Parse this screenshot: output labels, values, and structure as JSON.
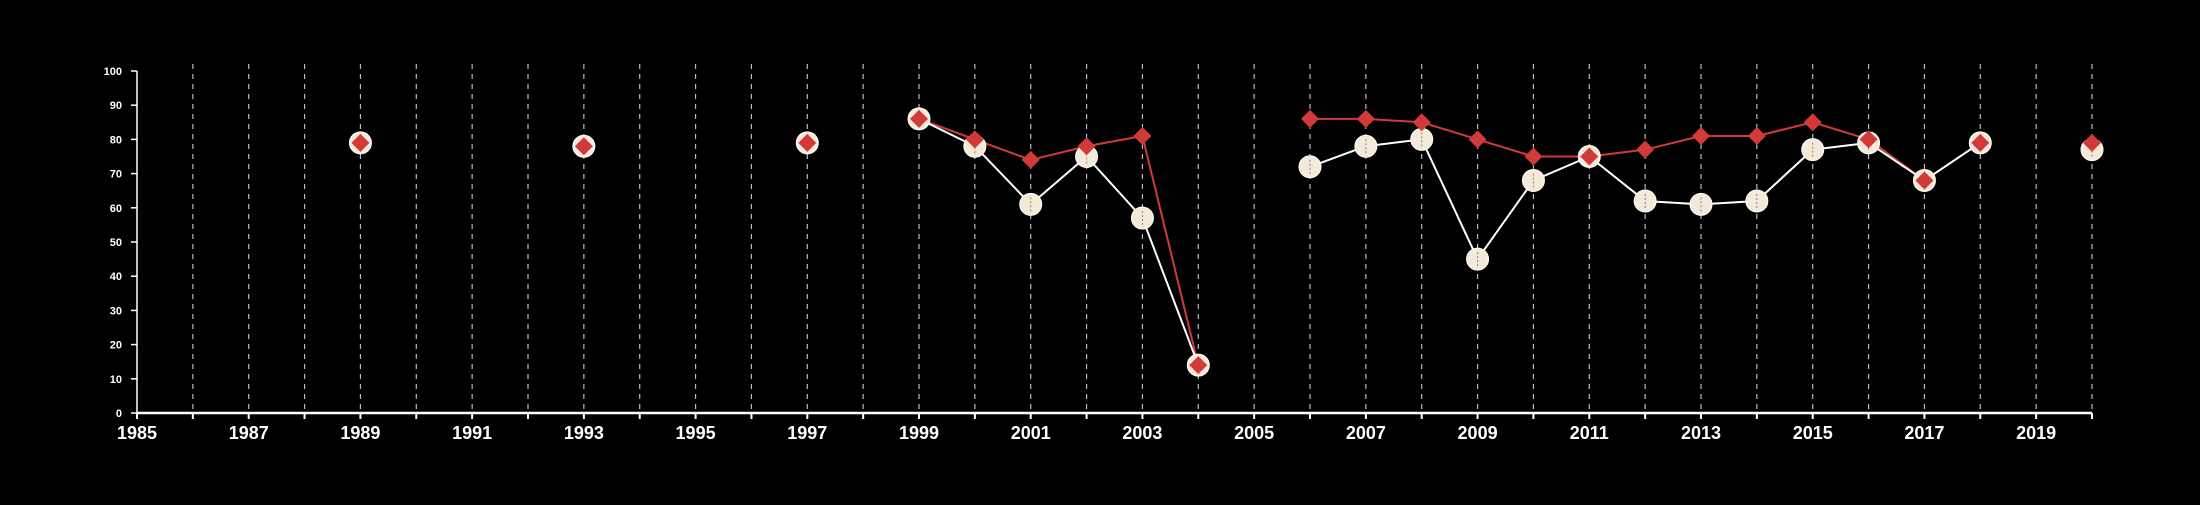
{
  "chart_data": {
    "type": "line",
    "title": "",
    "xlabel": "",
    "ylabel": "",
    "xlim": [
      1985,
      2020
    ],
    "ylim": [
      0,
      100
    ],
    "x_ticks": [
      1985,
      1986,
      1987,
      1988,
      1989,
      1990,
      1991,
      1992,
      1993,
      1994,
      1995,
      1996,
      1997,
      1998,
      1999,
      2000,
      2001,
      2002,
      2003,
      2004,
      2005,
      2006,
      2007,
      2008,
      2009,
      2010,
      2011,
      2012,
      2013,
      2014,
      2015,
      2016,
      2017,
      2018,
      2019,
      2020
    ],
    "x_tick_labels": [
      "1985",
      "1987",
      "1989",
      "1991",
      "1993",
      "1995",
      "1997",
      "1999",
      "2001",
      "2003",
      "2005",
      "2007",
      "2009",
      "2011",
      "2013",
      "2015",
      "2017",
      "2019"
    ],
    "y_ticks": [
      0,
      10,
      20,
      30,
      40,
      50,
      60,
      70,
      80,
      90,
      100
    ],
    "grid": "vertical dashed",
    "legend": "none",
    "background": "#000000",
    "series": [
      {
        "marker": "circle",
        "color": "#ffffff",
        "fill": "#f5ead9",
        "points": [
          {
            "x": 1989,
            "y": 79
          },
          {
            "x": 1993,
            "y": 78
          },
          {
            "x": 1997,
            "y": 79
          },
          {
            "x": 1999,
            "y": 86
          },
          {
            "x": 2000,
            "y": 78
          },
          {
            "x": 2001,
            "y": 61
          },
          {
            "x": 2002,
            "y": 75
          },
          {
            "x": 2003,
            "y": 57
          },
          {
            "x": 2004,
            "y": 14
          },
          {
            "x": 2006,
            "y": 72
          },
          {
            "x": 2007,
            "y": 78
          },
          {
            "x": 2008,
            "y": 80
          },
          {
            "x": 2009,
            "y": 45
          },
          {
            "x": 2010,
            "y": 68
          },
          {
            "x": 2011,
            "y": 75
          },
          {
            "x": 2012,
            "y": 62
          },
          {
            "x": 2013,
            "y": 61
          },
          {
            "x": 2014,
            "y": 62
          },
          {
            "x": 2015,
            "y": 77
          },
          {
            "x": 2016,
            "y": 79
          },
          {
            "x": 2017,
            "y": 68
          },
          {
            "x": 2018,
            "y": 79
          },
          {
            "x": 2020,
            "y": 77
          }
        ]
      },
      {
        "marker": "diamond",
        "color": "#d23a3a",
        "points": [
          {
            "x": 1989,
            "y": 79
          },
          {
            "x": 1993,
            "y": 78
          },
          {
            "x": 1997,
            "y": 79
          },
          {
            "x": 1999,
            "y": 86
          },
          {
            "x": 2000,
            "y": 80
          },
          {
            "x": 2001,
            "y": 74
          },
          {
            "x": 2002,
            "y": 78
          },
          {
            "x": 2003,
            "y": 81
          },
          {
            "x": 2004,
            "y": 14
          },
          {
            "x": 2006,
            "y": 86
          },
          {
            "x": 2007,
            "y": 86
          },
          {
            "x": 2008,
            "y": 85
          },
          {
            "x": 2009,
            "y": 80
          },
          {
            "x": 2010,
            "y": 75
          },
          {
            "x": 2011,
            "y": 75
          },
          {
            "x": 2012,
            "y": 77
          },
          {
            "x": 2013,
            "y": 81
          },
          {
            "x": 2014,
            "y": 81
          },
          {
            "x": 2015,
            "y": 85
          },
          {
            "x": 2016,
            "y": 80
          },
          {
            "x": 2017,
            "y": 68
          },
          {
            "x": 2018,
            "y": 79
          },
          {
            "x": 2020,
            "y": 79
          }
        ]
      }
    ]
  }
}
